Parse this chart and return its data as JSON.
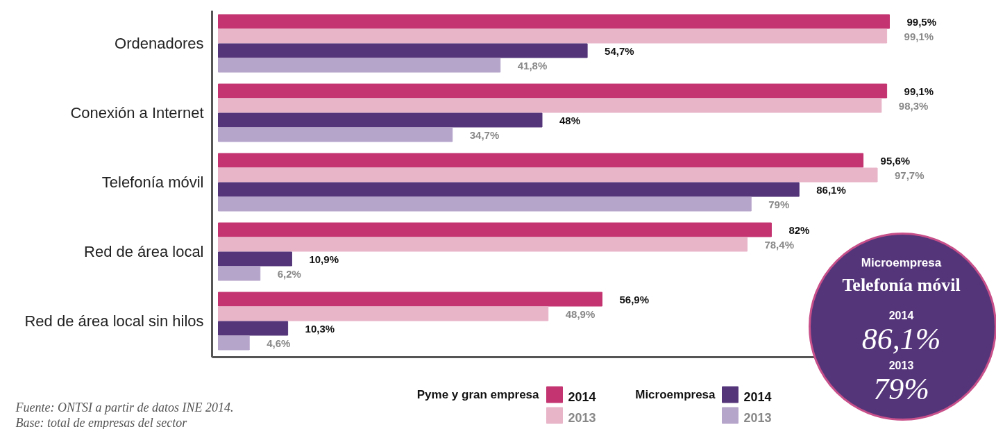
{
  "chart_data": {
    "type": "bar",
    "orientation": "horizontal",
    "legend": "bottom",
    "grid": false,
    "categories": [
      "Ordenadores",
      "Conexión a Internet",
      "Telefonía móvil",
      "Red de área local",
      "Red de área local sin hilos"
    ],
    "series": [
      {
        "name": "2014",
        "color": "#c33470",
        "values": [
          99.5,
          99.1,
          95.6,
          82,
          56.9
        ],
        "value_labels": [
          "99,5%",
          "99,1%",
          "95,6%",
          "82%",
          "56,9%"
        ]
      },
      {
        "name": "2013",
        "color": "#e8b4c8",
        "values": [
          99.1,
          98.3,
          97.7,
          78.4,
          48.9
        ],
        "value_labels": [
          "99,1%",
          "98,3%",
          "97,7%",
          "78,4%",
          "48,9%"
        ]
      },
      {
        "name": "2014",
        "color": "#55357a",
        "values": [
          54.7,
          48,
          86.1,
          10.9,
          10.3
        ],
        "value_labels": [
          "54,7%",
          "48%",
          "86,1%",
          "10,9%",
          "10,3%"
        ]
      },
      {
        "name": "2013",
        "color": "#b6a5cb",
        "values": [
          41.8,
          34.7,
          79,
          6.2,
          4.6
        ],
        "value_labels": [
          "41,8%",
          "34,7%",
          "79%",
          "6,2%",
          "4,6%"
        ]
      }
    ],
    "annotations": [
      "Fuente: ONTSI a partir de datos INE 2014.",
      "Base: total de empresas del sector",
      "Pyme y gran empresa",
      "Microempresa",
      "Microempresa",
      "Telefonía móvil",
      "2014",
      "86,1%",
      "2013",
      "79%"
    ]
  }
}
